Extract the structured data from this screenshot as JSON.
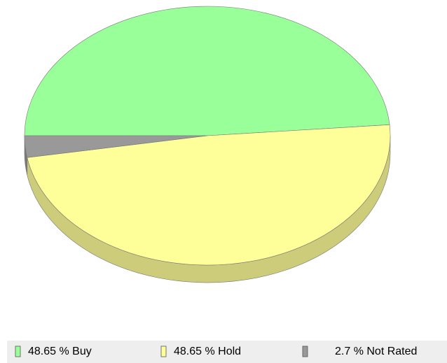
{
  "chart_data": {
    "type": "pie",
    "values": [
      48.65,
      48.65,
      2.7
    ],
    "value_labels": [
      "48.65 % Buy",
      "48.65 % Hold",
      "2.7 % Not Rated"
    ],
    "colors": [
      "#99ff99",
      "#ffff99",
      "#999999"
    ]
  }
}
